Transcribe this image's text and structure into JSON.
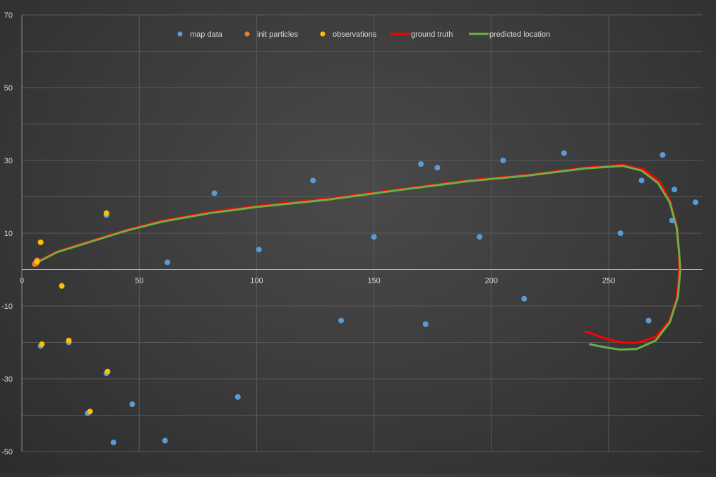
{
  "chart_data": {
    "type": "scatter",
    "title": "",
    "xlabel": "",
    "ylabel": "",
    "xlim": [
      0,
      290
    ],
    "ylim": [
      -50,
      70
    ],
    "x_ticks": [
      0,
      50,
      100,
      150,
      200,
      250
    ],
    "y_ticks": [
      70,
      50,
      30,
      10,
      -10,
      -30,
      -50
    ],
    "y_tick_labels": [
      "70",
      "50",
      "30",
      "10",
      "-10",
      "-30",
      "-50"
    ],
    "x_tick_labels": [
      "0",
      "50",
      "100",
      "150",
      "200",
      "250"
    ],
    "grid": true,
    "legend_position": "top-center",
    "legend": [
      {
        "label": "map data",
        "kind": "marker",
        "color": "#5b9bd5"
      },
      {
        "label": "init particles",
        "kind": "marker",
        "color": "#ed7d31"
      },
      {
        "label": "observations",
        "kind": "marker",
        "color": "#ffc000"
      },
      {
        "label": "ground truth",
        "kind": "line",
        "color": "#ff0000"
      },
      {
        "label": "predicted location",
        "kind": "line",
        "color": "#70ad47"
      }
    ],
    "series": [
      {
        "name": "map data",
        "kind": "scatter",
        "color": "#5b9bd5",
        "points": [
          [
            8,
            -21
          ],
          [
            20,
            -20
          ],
          [
            28,
            -39.5
          ],
          [
            36,
            -28.5
          ],
          [
            36,
            15
          ],
          [
            39,
            -47.5
          ],
          [
            47,
            -37
          ],
          [
            61,
            -47
          ],
          [
            62,
            2
          ],
          [
            82,
            21
          ],
          [
            92,
            -35
          ],
          [
            101,
            5.5
          ],
          [
            124,
            24.5
          ],
          [
            136,
            -14
          ],
          [
            150,
            9
          ],
          [
            170,
            29
          ],
          [
            172,
            -15
          ],
          [
            177,
            28
          ],
          [
            195,
            9
          ],
          [
            205,
            30
          ],
          [
            214,
            -8
          ],
          [
            231,
            32
          ],
          [
            255,
            10
          ],
          [
            264,
            24.5
          ],
          [
            267,
            -14
          ],
          [
            273,
            31.5
          ],
          [
            277,
            13.5
          ],
          [
            278,
            22
          ],
          [
            287,
            18.5
          ]
        ]
      },
      {
        "name": "init particles",
        "kind": "scatter",
        "color": "#ed7d31",
        "points": [
          [
            6,
            2
          ],
          [
            6.5,
            2.5
          ],
          [
            5.5,
            1.5
          ],
          [
            6.2,
            1.8
          ]
        ]
      },
      {
        "name": "observations",
        "kind": "scatter",
        "color": "#ffc000",
        "points": [
          [
            8,
            7.5
          ],
          [
            8.5,
            -20.5
          ],
          [
            17,
            -4.5
          ],
          [
            20,
            -19.5
          ],
          [
            29,
            -39
          ],
          [
            36,
            15.5
          ],
          [
            36.5,
            -28
          ],
          [
            6.5,
            2.2
          ]
        ]
      },
      {
        "name": "ground truth",
        "kind": "line",
        "color": "#ff0000",
        "points": [
          [
            6,
            2
          ],
          [
            15,
            5
          ],
          [
            30,
            8
          ],
          [
            45,
            11
          ],
          [
            60,
            13.5
          ],
          [
            80,
            15.8
          ],
          [
            100,
            17.5
          ],
          [
            130,
            19.5
          ],
          [
            160,
            22
          ],
          [
            190,
            24.5
          ],
          [
            215,
            26
          ],
          [
            240,
            28
          ],
          [
            256,
            28.8
          ],
          [
            265,
            27.5
          ],
          [
            272,
            24
          ],
          [
            276,
            19
          ],
          [
            279,
            12
          ],
          [
            280,
            5
          ],
          [
            280,
            0
          ],
          [
            279,
            -8
          ],
          [
            276,
            -14
          ],
          [
            270,
            -18.5
          ],
          [
            262,
            -20.2
          ],
          [
            255,
            -20
          ],
          [
            248,
            -18.8
          ],
          [
            240,
            -17
          ]
        ]
      },
      {
        "name": "predicted location",
        "kind": "line",
        "color": "#70ad47",
        "points": [
          [
            6,
            1.8
          ],
          [
            15,
            4.8
          ],
          [
            30,
            7.8
          ],
          [
            45,
            10.8
          ],
          [
            60,
            13.2
          ],
          [
            80,
            15.5
          ],
          [
            100,
            17.2
          ],
          [
            130,
            19.2
          ],
          [
            160,
            21.8
          ],
          [
            190,
            24.3
          ],
          [
            215,
            25.8
          ],
          [
            240,
            27.8
          ],
          [
            256,
            28.5
          ],
          [
            264,
            27.2
          ],
          [
            271,
            23.8
          ],
          [
            276,
            18.5
          ],
          [
            279,
            11.5
          ],
          [
            280,
            4.5
          ],
          [
            280.5,
            0
          ],
          [
            279.5,
            -7.5
          ],
          [
            276,
            -14.5
          ],
          [
            270,
            -19.5
          ],
          [
            262,
            -21.8
          ],
          [
            255,
            -22
          ],
          [
            248,
            -21.3
          ],
          [
            242,
            -20.5
          ]
        ]
      }
    ]
  }
}
